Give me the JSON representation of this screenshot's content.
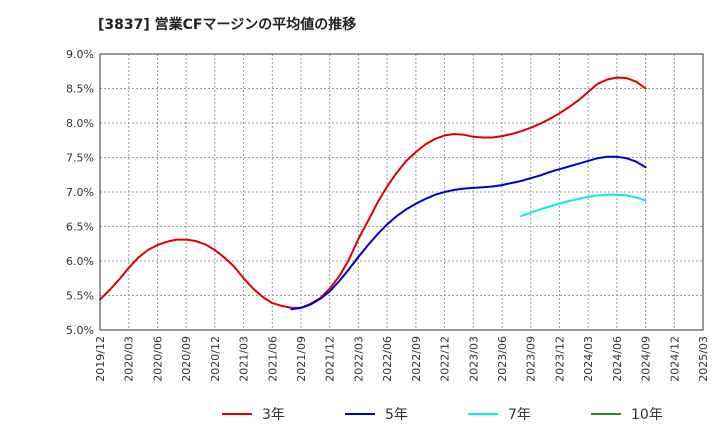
{
  "chart_data": {
    "type": "line",
    "title": "[3837]  営業CFマージンの平均値の推移",
    "xlabel": "",
    "ylabel": "",
    "ylim": [
      5.0,
      9.0
    ],
    "xlim": [
      "2019/12",
      "2025/03"
    ],
    "yticks": [
      "5.0%",
      "5.5%",
      "6.0%",
      "6.5%",
      "7.0%",
      "7.5%",
      "8.0%",
      "8.5%",
      "9.0%"
    ],
    "ytick_values": [
      5.0,
      5.5,
      6.0,
      6.5,
      7.0,
      7.5,
      8.0,
      8.5,
      9.0
    ],
    "xticks": [
      "2019/12",
      "2020/03",
      "2020/06",
      "2020/09",
      "2020/12",
      "2021/03",
      "2021/06",
      "2021/09",
      "2021/12",
      "2022/03",
      "2022/06",
      "2022/09",
      "2022/12",
      "2023/03",
      "2023/06",
      "2023/09",
      "2023/12",
      "2024/03",
      "2024/06",
      "2024/09",
      "2024/12",
      "2025/03"
    ],
    "grid": true,
    "legend_position": "bottom",
    "series": [
      {
        "name": "3年",
        "color": "#dd0000",
        "x": [
          "2019/12",
          "2020/01",
          "2020/02",
          "2020/03",
          "2020/04",
          "2020/05",
          "2020/06",
          "2020/07",
          "2020/08",
          "2020/09",
          "2020/10",
          "2020/11",
          "2020/12",
          "2021/01",
          "2021/02",
          "2021/03",
          "2021/04",
          "2021/05",
          "2021/06",
          "2021/07",
          "2021/08",
          "2021/09",
          "2021/10",
          "2021/11",
          "2021/12",
          "2022/01",
          "2022/02",
          "2022/03",
          "2022/04",
          "2022/05",
          "2022/06",
          "2022/07",
          "2022/08",
          "2022/09",
          "2022/10",
          "2022/11",
          "2022/12",
          "2023/01",
          "2023/02",
          "2023/03",
          "2023/04",
          "2023/05",
          "2023/06",
          "2023/07",
          "2023/08",
          "2023/09",
          "2023/10",
          "2023/11",
          "2023/12",
          "2024/01",
          "2024/02",
          "2024/03",
          "2024/04",
          "2024/05",
          "2024/06",
          "2024/07",
          "2024/08",
          "2024/09"
        ],
        "values": [
          5.44,
          5.58,
          5.73,
          5.9,
          6.05,
          6.16,
          6.23,
          6.28,
          6.31,
          6.31,
          6.29,
          6.24,
          6.16,
          6.05,
          5.92,
          5.75,
          5.6,
          5.48,
          5.39,
          5.35,
          5.32,
          5.32,
          5.38,
          5.46,
          5.6,
          5.78,
          6.02,
          6.32,
          6.58,
          6.85,
          7.08,
          7.28,
          7.45,
          7.58,
          7.69,
          7.77,
          7.82,
          7.84,
          7.83,
          7.8,
          7.79,
          7.79,
          7.81,
          7.84,
          7.88,
          7.93,
          7.99,
          8.06,
          8.14,
          8.23,
          8.33,
          8.45,
          8.57,
          8.63,
          8.66,
          8.65,
          8.6,
          8.5
        ]
      },
      {
        "name": "5年",
        "color": "#0000cc",
        "x": [
          "2021/08",
          "2021/09",
          "2021/10",
          "2021/11",
          "2021/12",
          "2022/01",
          "2022/02",
          "2022/03",
          "2022/04",
          "2022/05",
          "2022/06",
          "2022/07",
          "2022/08",
          "2022/09",
          "2022/10",
          "2022/11",
          "2022/12",
          "2023/01",
          "2023/02",
          "2023/03",
          "2023/04",
          "2023/05",
          "2023/06",
          "2023/07",
          "2023/08",
          "2023/09",
          "2023/10",
          "2023/11",
          "2023/12",
          "2024/01",
          "2024/02",
          "2024/03",
          "2024/04",
          "2024/05",
          "2024/06",
          "2024/07",
          "2024/08",
          "2024/09"
        ],
        "values": [
          5.3,
          5.32,
          5.37,
          5.45,
          5.56,
          5.71,
          5.88,
          6.06,
          6.23,
          6.39,
          6.53,
          6.65,
          6.75,
          6.83,
          6.9,
          6.96,
          7.0,
          7.03,
          7.05,
          7.06,
          7.07,
          7.08,
          7.1,
          7.13,
          7.16,
          7.2,
          7.24,
          7.29,
          7.33,
          7.37,
          7.41,
          7.45,
          7.49,
          7.51,
          7.51,
          7.49,
          7.44,
          7.36
        ]
      },
      {
        "name": "7年",
        "color": "#00eeee",
        "x": [
          "2023/08",
          "2023/09",
          "2023/10",
          "2023/11",
          "2023/12",
          "2024/01",
          "2024/02",
          "2024/03",
          "2024/04",
          "2024/05",
          "2024/06",
          "2024/07",
          "2024/08",
          "2024/09"
        ],
        "values": [
          6.65,
          6.7,
          6.75,
          6.79,
          6.83,
          6.87,
          6.9,
          6.93,
          6.95,
          6.96,
          6.96,
          6.95,
          6.92,
          6.88
        ]
      },
      {
        "name": "10年",
        "color": "#228b22",
        "x": [],
        "values": []
      }
    ]
  }
}
